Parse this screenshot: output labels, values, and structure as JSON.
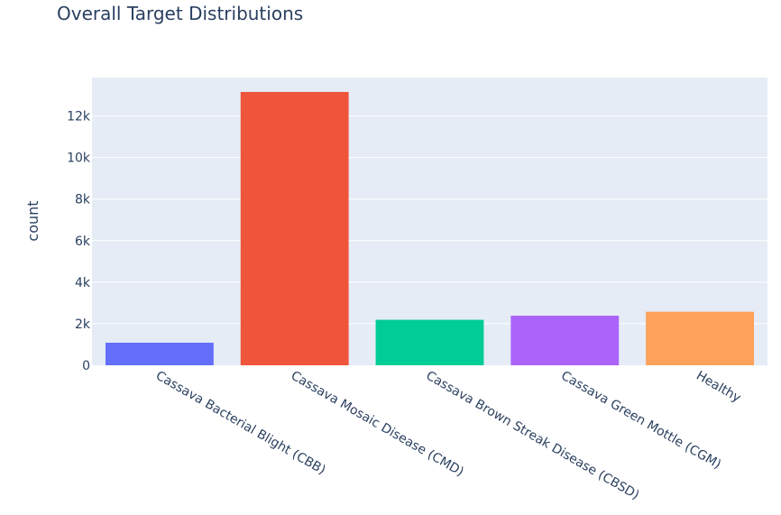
{
  "chart_data": {
    "type": "bar",
    "title": "Overall Target Distributions",
    "xlabel": "",
    "ylabel": "count",
    "categories": [
      "Cassava Bacterial Blight (CBB)",
      "Cassava Mosaic Disease (CMD)",
      "Cassava Brown Streak Disease (CBSD)",
      "Cassava Green Mottle (CGM)",
      "Healthy"
    ],
    "values": [
      1087,
      13158,
      2189,
      2386,
      2577
    ],
    "colors": [
      "#636efa",
      "#ef553b",
      "#00cc96",
      "#ab63fa",
      "#ffa15a"
    ],
    "ylim": [
      0,
      13850
    ],
    "yticks": [
      0,
      2000,
      4000,
      6000,
      8000,
      10000,
      12000
    ],
    "ytick_labels": [
      "0",
      "2k",
      "4k",
      "6k",
      "8k",
      "10k",
      "12k"
    ],
    "grid": true,
    "plot_background": "#e5ecf6"
  }
}
